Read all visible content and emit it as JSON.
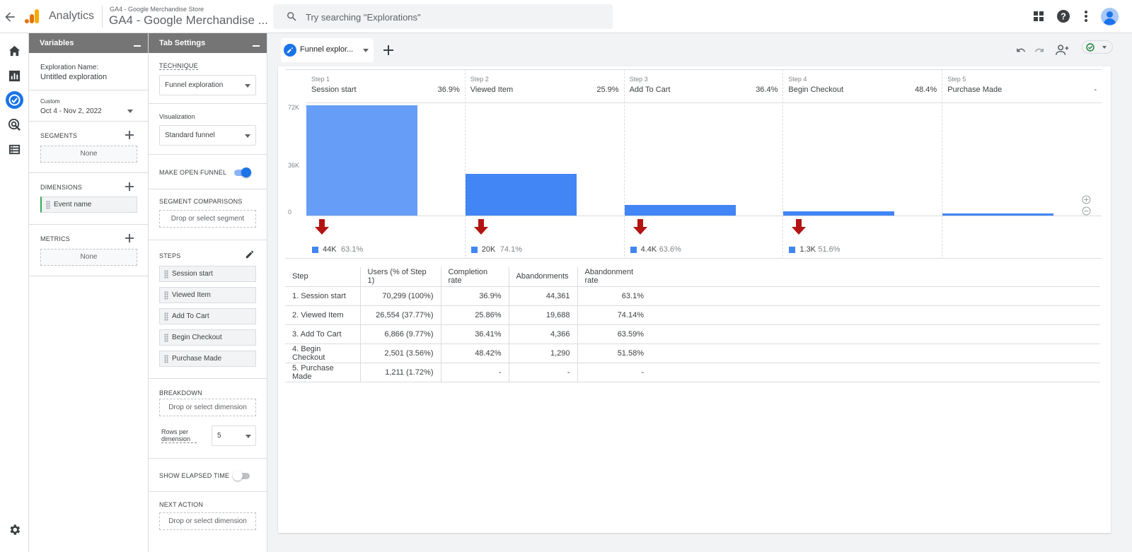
{
  "header": {
    "app_name": "Analytics",
    "property_small": "GA4 - Google Merchandise Store",
    "property_big": "GA4 - Google Merchandise ...",
    "search_placeholder": "Try searching \"Explorations\""
  },
  "variables": {
    "title": "Variables",
    "exploration_name_label": "Exploration Name:",
    "exploration_name": "Untitled exploration",
    "date_label": "Custom",
    "date_range": "Oct 4 - Nov 2, 2022",
    "segments_label": "SEGMENTS",
    "segments_empty": "None",
    "dimensions_label": "DIMENSIONS",
    "dimensions": [
      "Event name"
    ],
    "metrics_label": "METRICS",
    "metrics_empty": "None"
  },
  "tab_settings": {
    "title": "Tab Settings",
    "technique_label": "TECHNIQUE",
    "technique": "Funnel exploration",
    "visualization_label": "Visualization",
    "visualization": "Standard funnel",
    "open_funnel_label": "MAKE OPEN FUNNEL",
    "open_funnel_on": true,
    "segment_comparisons_label": "SEGMENT COMPARISONS",
    "segment_drop": "Drop or select segment",
    "steps_label": "STEPS",
    "steps": [
      "Session start",
      "Viewed Item",
      "Add To Cart",
      "Begin Checkout",
      "Purchase Made"
    ],
    "breakdown_label": "BREAKDOWN",
    "breakdown_drop": "Drop or select dimension",
    "rows_per_dimension_label": "Rows per dimension",
    "rows_per_dimension": "5",
    "elapsed_label": "SHOW ELAPSED TIME",
    "elapsed_on": false,
    "next_action_label": "NEXT ACTION",
    "next_action_drop": "Drop or select dimension"
  },
  "tab": {
    "label": "Funnel explor..."
  },
  "chart_data": {
    "type": "bar",
    "y_ticks": [
      "72K",
      "36K",
      "0"
    ],
    "ylim": [
      0,
      72000
    ],
    "categories": [
      "Session start",
      "Viewed Item",
      "Add To Cart",
      "Begin Checkout",
      "Purchase Made"
    ],
    "step_numbers": [
      "Step 1",
      "Step 2",
      "Step 3",
      "Step 4",
      "Step 5"
    ],
    "completion_labels": [
      "36.9%",
      "25.9%",
      "36.4%",
      "48.4%",
      "-"
    ],
    "values": [
      70299,
      26554,
      6866,
      2501,
      1211
    ],
    "abandonments": [
      {
        "count": "44K",
        "rate": "63.1%"
      },
      {
        "count": "20K",
        "rate": "74.1%"
      },
      {
        "count": "4.4K",
        "rate": "63.6%"
      },
      {
        "count": "1.3K",
        "rate": "51.6%"
      }
    ]
  },
  "table": {
    "headers": [
      "Step",
      "Users (% of Step 1)",
      "Completion rate",
      "Abandonments",
      "Abandonment rate"
    ],
    "rows": [
      [
        "1. Session start",
        "70,299 (100%)",
        "36.9%",
        "44,361",
        "63.1%"
      ],
      [
        "2. Viewed Item",
        "26,554 (37.77%)",
        "25.86%",
        "19,688",
        "74.14%"
      ],
      [
        "3. Add To Cart",
        "6,866 (9.77%)",
        "36.41%",
        "4,366",
        "63.59%"
      ],
      [
        "4. Begin Checkout",
        "2,501 (3.56%)",
        "48.42%",
        "1,290",
        "51.58%"
      ],
      [
        "5. Purchase Made",
        "1,211 (1.72%)",
        "-",
        "-",
        "-"
      ]
    ]
  },
  "colors": {
    "accent": "#1a73e8",
    "bar": "#4285f4",
    "bar_first": "#669df6",
    "arrow": "#b31412"
  }
}
